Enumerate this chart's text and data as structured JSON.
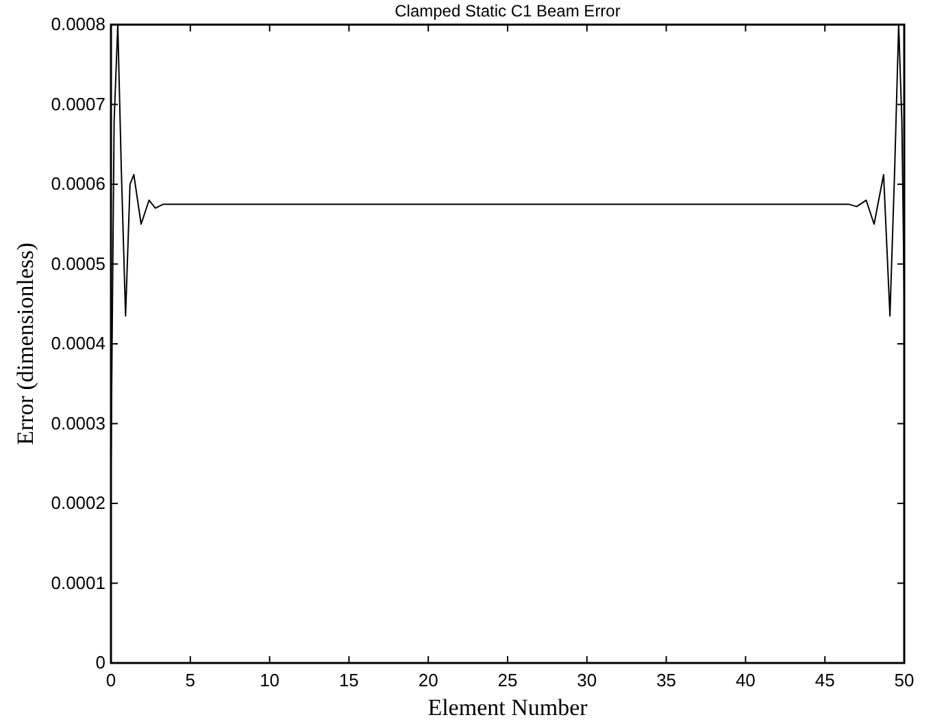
{
  "chart_data": {
    "type": "line",
    "title": "Clamped Static C1 Beam Error",
    "xlabel": "Element Number",
    "ylabel": "Error (dimensionless)",
    "series": [
      {
        "color": "#000000",
        "x": [
          0,
          0.2,
          0.43,
          0.65,
          0.92,
          1.2,
          1.44,
          1.9,
          2.4,
          2.8,
          3.3,
          46.5,
          47,
          47.6,
          48.1,
          48.7,
          49.1,
          49.4,
          49.65,
          49.85,
          50
        ],
        "values": [
          0.00025,
          0.00068,
          0.0008,
          0.00062,
          0.000435,
          0.0006,
          0.000612,
          0.00055,
          0.00058,
          0.00057,
          0.000575,
          0.000575,
          0.000572,
          0.00058,
          0.00055,
          0.000612,
          0.000435,
          0.00062,
          0.0008,
          0.00068,
          0.00046
        ]
      }
    ],
    "xlim": [
      0,
      50
    ],
    "xticks": [
      0,
      5,
      10,
      15,
      20,
      25,
      30,
      35,
      40,
      45,
      50
    ],
    "ylim": [
      0,
      0.0008
    ],
    "yticks": [
      0,
      0.0001,
      0.0002,
      0.0003,
      0.0004,
      0.0005,
      0.0006,
      0.0007,
      0.0008
    ],
    "grid": false,
    "marker": "none",
    "line_style": "solid"
  }
}
